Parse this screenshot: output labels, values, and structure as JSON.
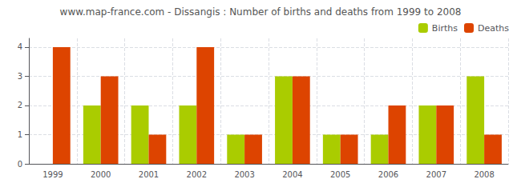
{
  "chart_data": {
    "type": "bar",
    "title": "www.map-france.com - Dissangis : Number of births and deaths from 1999 to 2008",
    "categories": [
      "1999",
      "2000",
      "2001",
      "2002",
      "2003",
      "2004",
      "2005",
      "2006",
      "2007",
      "2008"
    ],
    "series": [
      {
        "name": "Births",
        "color": "#aacc00",
        "values": [
          0,
          2,
          2,
          2,
          1,
          3,
          1,
          1,
          2,
          3
        ]
      },
      {
        "name": "Deaths",
        "color": "#dd4400",
        "values": [
          4,
          3,
          1,
          4,
          1,
          3,
          1,
          2,
          2,
          1
        ]
      }
    ],
    "ylim": [
      0,
      4.3
    ],
    "yticks": [
      0,
      1,
      2,
      3,
      4
    ],
    "grid": true,
    "legend": "upper right"
  }
}
